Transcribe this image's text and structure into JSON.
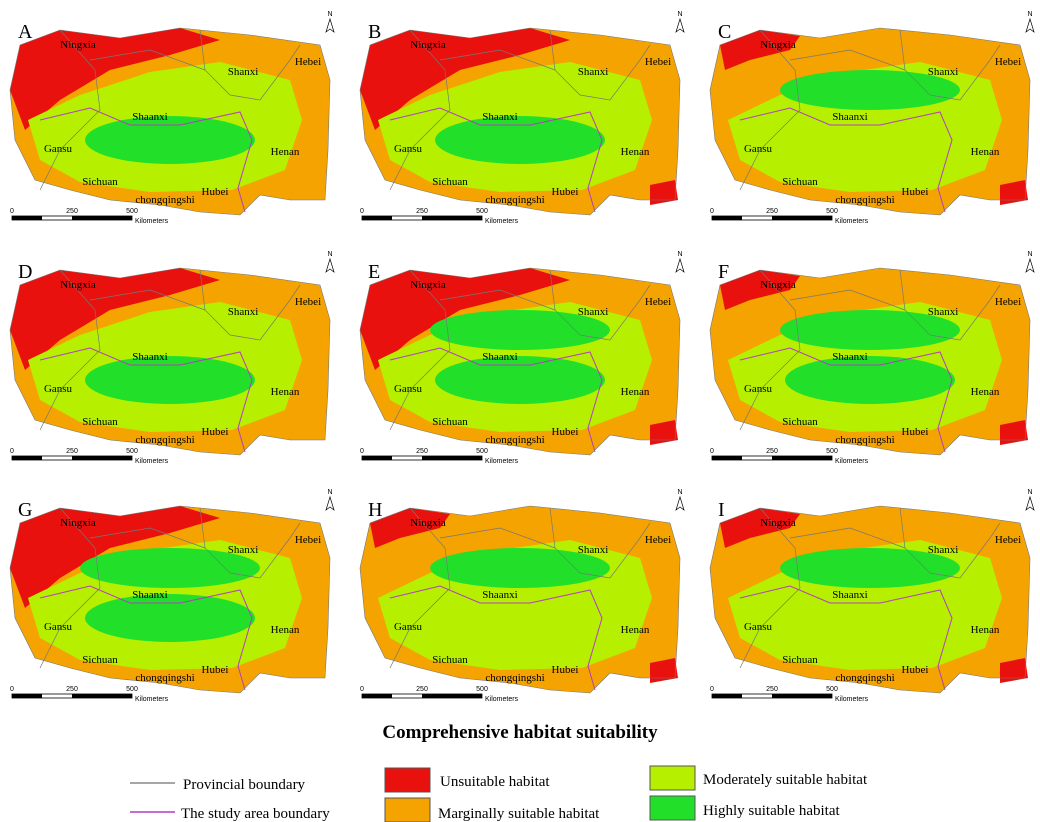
{
  "panels": [
    {
      "letter": "A"
    },
    {
      "letter": "B"
    },
    {
      "letter": "C"
    },
    {
      "letter": "D"
    },
    {
      "letter": "E"
    },
    {
      "letter": "F"
    },
    {
      "letter": "G"
    },
    {
      "letter": "H"
    },
    {
      "letter": "I"
    }
  ],
  "province_labels": [
    "Ningxia",
    "Shanxi",
    "Hebei",
    "Shaanxi",
    "Gansu",
    "Henan",
    "Sichuan",
    "Hubei",
    "chongqingshi"
  ],
  "scale_bar": {
    "ticks": [
      "0",
      "250",
      "500"
    ],
    "unit": "Kilometers"
  },
  "north": "N",
  "title": "Comprehensive habitat suitability",
  "legend": {
    "lines": [
      "Provincial boundary",
      "The study area boundary"
    ],
    "classes": [
      "Unsuitable habitat",
      "Marginally suitable habitat",
      "Moderately suitable habitat",
      "Highly suitable habitat"
    ]
  }
}
